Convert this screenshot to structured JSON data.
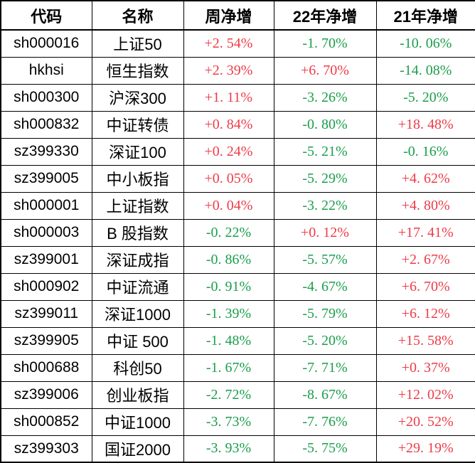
{
  "colors": {
    "up": "#ed3b47",
    "down": "#1a9e4b",
    "grid": "#000000",
    "background": "#ffffff",
    "header_text": "#000000"
  },
  "table": {
    "columns": [
      {
        "label": "代码"
      },
      {
        "label": "名称"
      },
      {
        "label": "周净增"
      },
      {
        "label": "22年净增"
      },
      {
        "label": "21年净增"
      }
    ],
    "rows": [
      {
        "code": "sh000016",
        "name": "上证50",
        "week": "+2. 54%",
        "week_dir": "up",
        "y22": "-1. 70%",
        "y22_dir": "down",
        "y21": "-10. 06%",
        "y21_dir": "down"
      },
      {
        "code": "hkhsi",
        "name": "恒生指数",
        "week": "+2. 39%",
        "week_dir": "up",
        "y22": "+6. 70%",
        "y22_dir": "up",
        "y21": "-14. 08%",
        "y21_dir": "down"
      },
      {
        "code": "sh000300",
        "name": "沪深300",
        "week": "+1. 11%",
        "week_dir": "up",
        "y22": "-3. 26%",
        "y22_dir": "down",
        "y21": "-5. 20%",
        "y21_dir": "down"
      },
      {
        "code": "sh000832",
        "name": "中证转债",
        "week": "+0. 84%",
        "week_dir": "up",
        "y22": "-0. 80%",
        "y22_dir": "down",
        "y21": "+18. 48%",
        "y21_dir": "up"
      },
      {
        "code": "sz399330",
        "name": "深证100",
        "week": "+0. 24%",
        "week_dir": "up",
        "y22": "-5. 21%",
        "y22_dir": "down",
        "y21": "-0. 16%",
        "y21_dir": "down"
      },
      {
        "code": "sz399005",
        "name": "中小板指",
        "week": "+0. 05%",
        "week_dir": "up",
        "y22": "-5. 29%",
        "y22_dir": "down",
        "y21": "+4. 62%",
        "y21_dir": "up"
      },
      {
        "code": "sh000001",
        "name": "上证指数",
        "week": "+0. 04%",
        "week_dir": "up",
        "y22": "-3. 22%",
        "y22_dir": "down",
        "y21": "+4. 80%",
        "y21_dir": "up"
      },
      {
        "code": "sh000003",
        "name": "B 股指数",
        "week": "-0. 22%",
        "week_dir": "down",
        "y22": "+0. 12%",
        "y22_dir": "up",
        "y21": "+17. 41%",
        "y21_dir": "up"
      },
      {
        "code": "sz399001",
        "name": "深证成指",
        "week": "-0. 86%",
        "week_dir": "down",
        "y22": "-5. 57%",
        "y22_dir": "down",
        "y21": "+2. 67%",
        "y21_dir": "up"
      },
      {
        "code": "sh000902",
        "name": "中证流通",
        "week": "-0. 91%",
        "week_dir": "down",
        "y22": "-4. 67%",
        "y22_dir": "down",
        "y21": "+6. 70%",
        "y21_dir": "up"
      },
      {
        "code": "sz399011",
        "name": "深证1000",
        "week": "-1. 39%",
        "week_dir": "down",
        "y22": "-5. 79%",
        "y22_dir": "down",
        "y21": "+6. 12%",
        "y21_dir": "up"
      },
      {
        "code": "sz399905",
        "name": "中证 500",
        "week": "-1. 48%",
        "week_dir": "down",
        "y22": "-5. 20%",
        "y22_dir": "down",
        "y21": "+15. 58%",
        "y21_dir": "up"
      },
      {
        "code": "sh000688",
        "name": "科创50",
        "week": "-1. 67%",
        "week_dir": "down",
        "y22": "-7. 71%",
        "y22_dir": "down",
        "y21": "+0. 37%",
        "y21_dir": "up"
      },
      {
        "code": "sz399006",
        "name": "创业板指",
        "week": "-2. 72%",
        "week_dir": "down",
        "y22": "-8. 67%",
        "y22_dir": "down",
        "y21": "+12. 02%",
        "y21_dir": "up"
      },
      {
        "code": "sh000852",
        "name": "中证1000",
        "week": "-3. 73%",
        "week_dir": "down",
        "y22": "-7. 76%",
        "y22_dir": "down",
        "y21": "+20. 52%",
        "y21_dir": "up"
      },
      {
        "code": "sz399303",
        "name": "国证2000",
        "week": "-3. 93%",
        "week_dir": "down",
        "y22": "-5. 75%",
        "y22_dir": "down",
        "y21": "+29. 19%",
        "y21_dir": "up"
      }
    ]
  },
  "chart_data": {
    "type": "table",
    "title": "",
    "columns": [
      "代码",
      "名称",
      "周净增",
      "22年净增",
      "21年净增"
    ],
    "rows": [
      [
        "sh000016",
        "上证50",
        "+2.54%",
        "-1.70%",
        "-10.06%"
      ],
      [
        "hkhsi",
        "恒生指数",
        "+2.39%",
        "+6.70%",
        "-14.08%"
      ],
      [
        "sh000300",
        "沪深300",
        "+1.11%",
        "-3.26%",
        "-5.20%"
      ],
      [
        "sh000832",
        "中证转债",
        "+0.84%",
        "-0.80%",
        "+18.48%"
      ],
      [
        "sz399330",
        "深证100",
        "+0.24%",
        "-5.21%",
        "-0.16%"
      ],
      [
        "sz399005",
        "中小板指",
        "+0.05%",
        "-5.29%",
        "+4.62%"
      ],
      [
        "sh000001",
        "上证指数",
        "+0.04%",
        "-3.22%",
        "+4.80%"
      ],
      [
        "sh000003",
        "B 股指数",
        "-0.22%",
        "+0.12%",
        "+17.41%"
      ],
      [
        "sz399001",
        "深证成指",
        "-0.86%",
        "-5.57%",
        "+2.67%"
      ],
      [
        "sh000902",
        "中证流通",
        "-0.91%",
        "-4.67%",
        "+6.70%"
      ],
      [
        "sz399011",
        "深证1000",
        "-1.39%",
        "-5.79%",
        "+6.12%"
      ],
      [
        "sz399905",
        "中证 500",
        "-1.48%",
        "-5.20%",
        "+15.58%"
      ],
      [
        "sh000688",
        "科创50",
        "-1.67%",
        "-7.71%",
        "+0.37%"
      ],
      [
        "sz399006",
        "创业板指",
        "-2.72%",
        "-8.67%",
        "+12.02%"
      ],
      [
        "sh000852",
        "中证1000",
        "-3.73%",
        "-7.76%",
        "+20.52%"
      ],
      [
        "sz399303",
        "国证2000",
        "-3.93%",
        "-5.75%",
        "+29.19%"
      ]
    ],
    "legend": {
      "red_means": "positive change (gain)",
      "green_means": "negative change (loss)"
    }
  }
}
